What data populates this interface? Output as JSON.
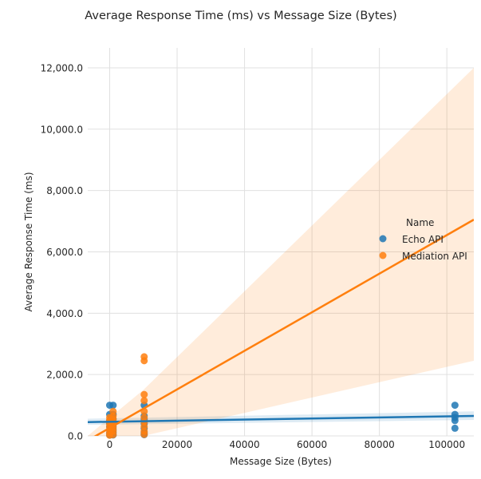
{
  "chart_data": {
    "type": "scatter",
    "title": "Average Response Time (ms) vs Message Size (Bytes)",
    "xlabel": "Message Size (Bytes)",
    "ylabel": "Average Response Time (ms)",
    "xlim": [
      -6500,
      108000
    ],
    "ylim": [
      0,
      12650
    ],
    "x_ticks": [
      0,
      20000,
      40000,
      60000,
      80000,
      100000
    ],
    "x_tick_labels": [
      "0",
      "20000",
      "40000",
      "60000",
      "80000",
      "100000"
    ],
    "y_ticks": [
      0,
      2000,
      4000,
      6000,
      8000,
      10000,
      12000
    ],
    "y_tick_labels": [
      "0.0",
      "2,000.0",
      "4,000.0",
      "6,000.0",
      "8,000.0",
      "10,000.0",
      "12,000.0"
    ],
    "grid": true,
    "legend": {
      "title": "Name",
      "placement": "right"
    },
    "series": [
      {
        "name": "Echo API",
        "color": "#1f77b4",
        "points": [
          [
            0,
            1000
          ],
          [
            0,
            700
          ],
          [
            0,
            500
          ],
          [
            0,
            400
          ],
          [
            0,
            300
          ],
          [
            0,
            200
          ],
          [
            0,
            100
          ],
          [
            0,
            30
          ],
          [
            1024,
            1000
          ],
          [
            1024,
            700
          ],
          [
            1024,
            550
          ],
          [
            1024,
            400
          ],
          [
            1024,
            300
          ],
          [
            1024,
            200
          ],
          [
            1024,
            100
          ],
          [
            1024,
            30
          ],
          [
            10240,
            1000
          ],
          [
            10240,
            650
          ],
          [
            10240,
            550
          ],
          [
            10240,
            400
          ],
          [
            10240,
            250
          ],
          [
            10240,
            100
          ],
          [
            10240,
            40
          ],
          [
            102400,
            1000
          ],
          [
            102400,
            700
          ],
          [
            102400,
            600
          ],
          [
            102400,
            500
          ],
          [
            102400,
            250
          ]
        ],
        "regression": {
          "x": [
            -6500,
            108000
          ],
          "y": [
            450,
            650
          ]
        },
        "ci_band": {
          "x": [
            -6500,
            108000
          ],
          "upper": [
            560,
            800
          ],
          "lower": [
            360,
            520
          ]
        }
      },
      {
        "name": "Mediation API",
        "color": "#ff7f0e",
        "points": [
          [
            0,
            600
          ],
          [
            0,
            500
          ],
          [
            0,
            400
          ],
          [
            0,
            300
          ],
          [
            0,
            200
          ],
          [
            0,
            100
          ],
          [
            0,
            20
          ],
          [
            1024,
            800
          ],
          [
            1024,
            650
          ],
          [
            1024,
            550
          ],
          [
            1024,
            450
          ],
          [
            1024,
            350
          ],
          [
            1024,
            250
          ],
          [
            1024,
            150
          ],
          [
            1024,
            40
          ],
          [
            10240,
            2580
          ],
          [
            10240,
            2450
          ],
          [
            10240,
            1350
          ],
          [
            10240,
            1150
          ],
          [
            10240,
            800
          ],
          [
            10240,
            600
          ],
          [
            10240,
            450
          ],
          [
            10240,
            300
          ],
          [
            10240,
            150
          ],
          [
            10240,
            50
          ]
        ],
        "regression": {
          "x": [
            -6500,
            108000
          ],
          "y": [
            -150,
            7050
          ]
        },
        "ci_band": {
          "x": [
            -6500,
            10000,
            108000
          ],
          "upper": [
            0,
            1500,
            12000
          ],
          "lower": [
            0,
            0,
            2450
          ]
        }
      }
    ]
  }
}
